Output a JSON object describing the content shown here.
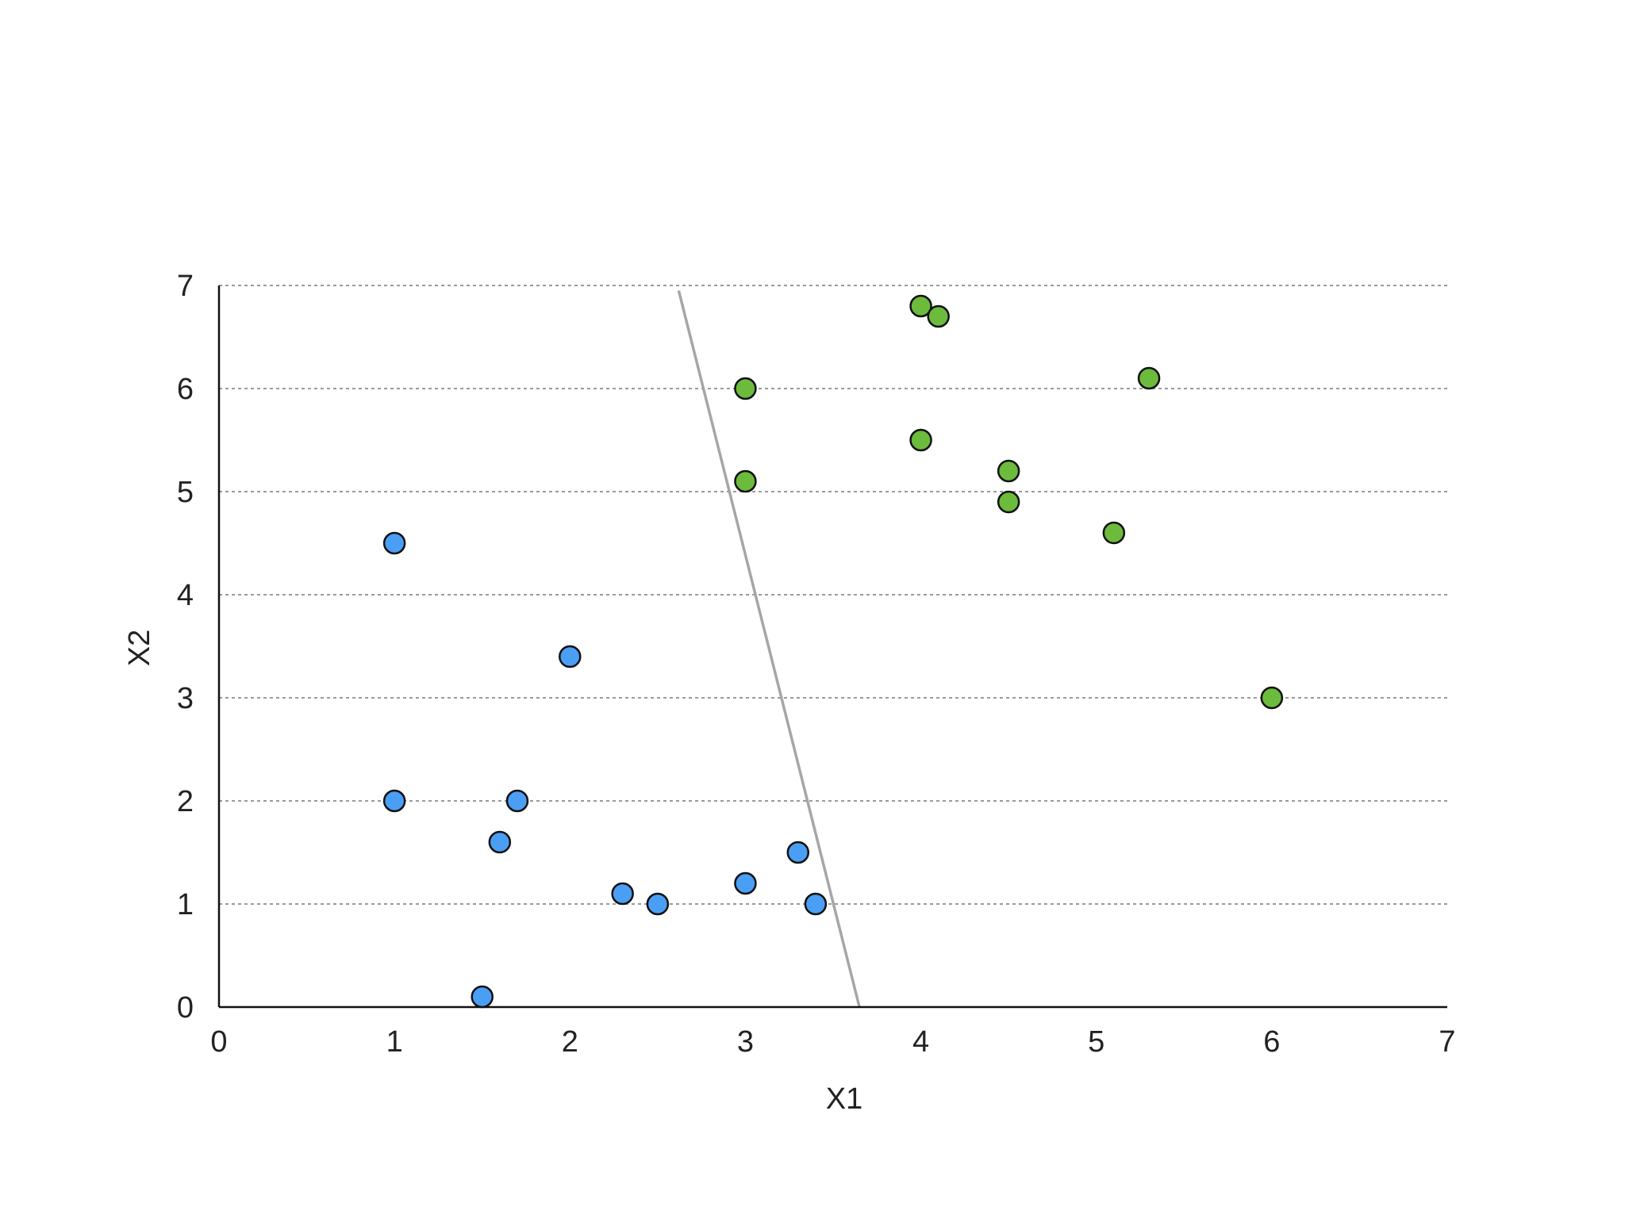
{
  "chart_data": {
    "type": "scatter",
    "title": "",
    "xlabel": "X1",
    "ylabel": "X2",
    "xlim": [
      0,
      7
    ],
    "ylim": [
      0,
      7
    ],
    "xticks": [
      "0",
      "1",
      "2",
      "3",
      "4",
      "5",
      "6",
      "7"
    ],
    "yticks": [
      "0",
      "1",
      "2",
      "3",
      "4",
      "5",
      "6",
      "7"
    ],
    "grid": "horizontal dashed",
    "legend": "none",
    "series": [
      {
        "color": "#4a9ff5",
        "points": [
          {
            "x": 1.0,
            "y": 4.5
          },
          {
            "x": 2.0,
            "y": 3.4
          },
          {
            "x": 1.0,
            "y": 2.0
          },
          {
            "x": 1.7,
            "y": 2.0
          },
          {
            "x": 1.6,
            "y": 1.6
          },
          {
            "x": 2.3,
            "y": 1.1
          },
          {
            "x": 2.5,
            "y": 1.0
          },
          {
            "x": 3.0,
            "y": 1.2
          },
          {
            "x": 3.3,
            "y": 1.5
          },
          {
            "x": 3.4,
            "y": 1.0
          },
          {
            "x": 1.5,
            "y": 0.1
          }
        ]
      },
      {
        "color": "#6cbb3c",
        "points": [
          {
            "x": 4.0,
            "y": 6.8
          },
          {
            "x": 4.1,
            "y": 6.7
          },
          {
            "x": 3.0,
            "y": 6.0
          },
          {
            "x": 5.3,
            "y": 6.1
          },
          {
            "x": 4.0,
            "y": 5.5
          },
          {
            "x": 3.0,
            "y": 5.1
          },
          {
            "x": 4.5,
            "y": 5.2
          },
          {
            "x": 4.5,
            "y": 4.9
          },
          {
            "x": 5.1,
            "y": 4.6
          },
          {
            "x": 6.0,
            "y": 3.0
          }
        ]
      }
    ],
    "separator_line": {
      "color": "#a6a6a6",
      "points": [
        {
          "x": 2.62,
          "y": 6.95
        },
        {
          "x": 3.65,
          "y": 0.0
        }
      ]
    }
  }
}
